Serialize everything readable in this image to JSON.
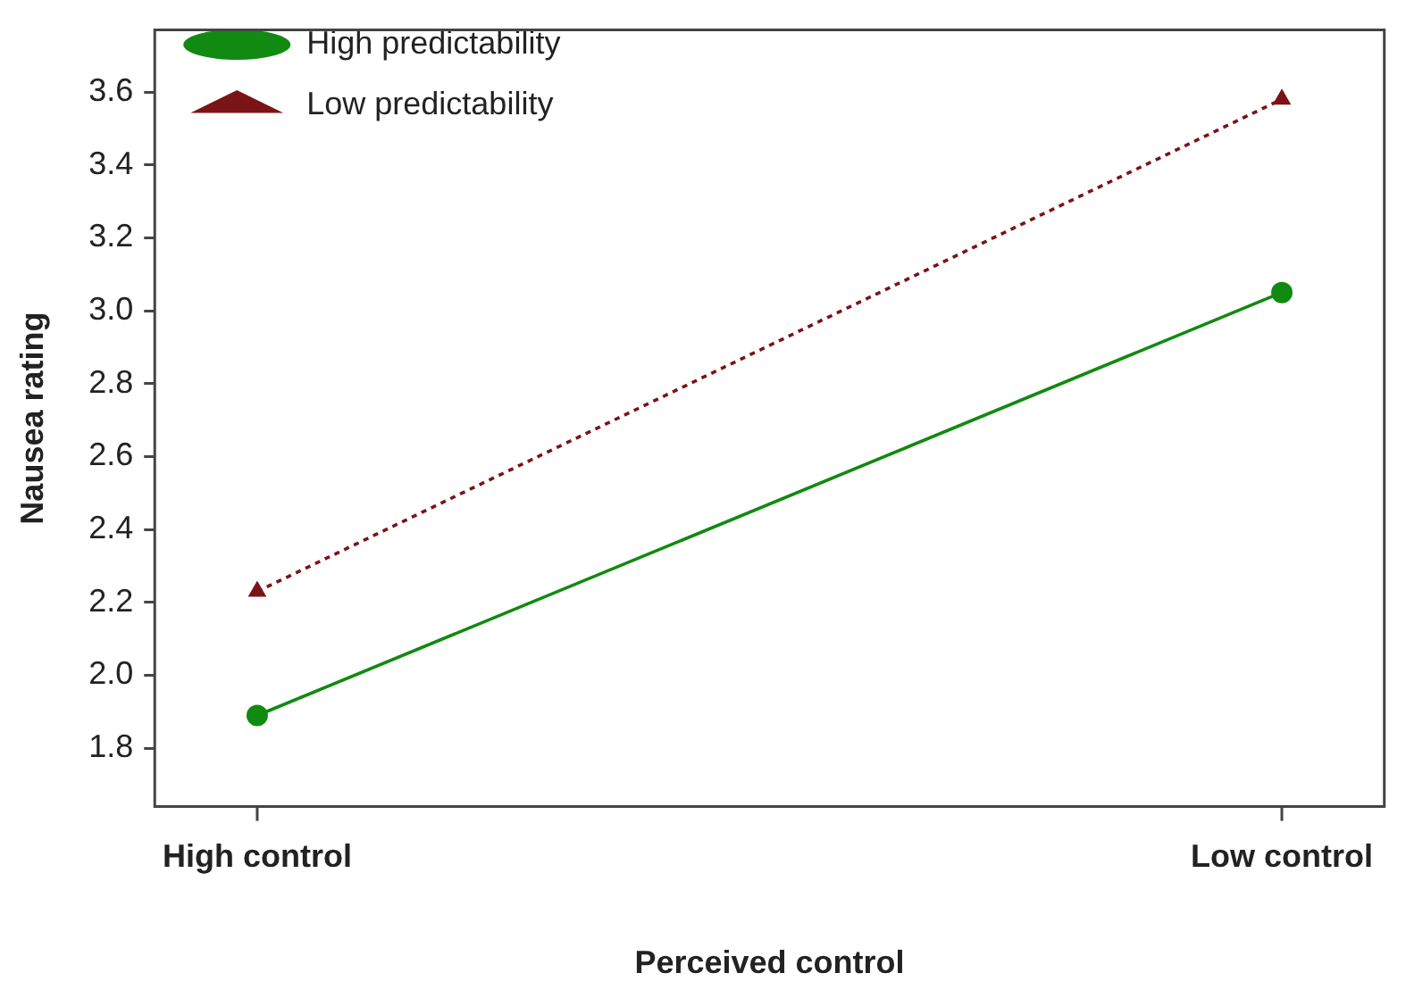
{
  "chart_data": {
    "type": "line",
    "xlabel": "Perceived control",
    "ylabel": "Nausea rating",
    "categories": [
      "High control",
      "Low control"
    ],
    "series": [
      {
        "name": "High predictability",
        "color": "#118a11",
        "values": [
          1.89,
          3.05
        ],
        "marker": "circle",
        "line_style": "solid"
      },
      {
        "name": "Low predictability",
        "color": "#7a1416",
        "values": [
          2.23,
          3.58
        ],
        "marker": "triangle",
        "line_style": "dotted"
      }
    ],
    "ylim": [
      1.64,
      3.77
    ],
    "yticks": [
      1.8,
      {
        "value": 2,
        "label": "2.0"
      },
      2.2,
      2.4,
      2.6,
      2.8,
      {
        "value": 3,
        "label": "3.0"
      },
      3.2,
      3.4,
      3.6
    ],
    "grid": false,
    "legend": "top left"
  }
}
